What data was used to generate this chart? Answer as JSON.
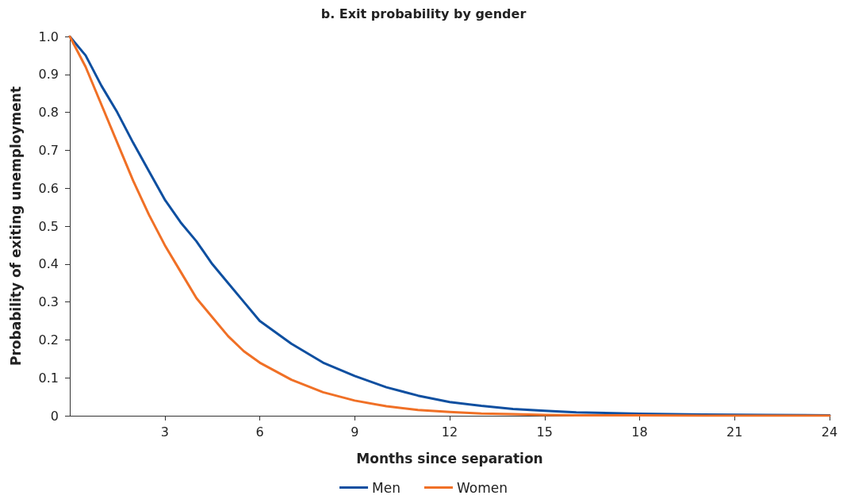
{
  "chart_data": {
    "type": "line",
    "title": "b. Exit probability by gender",
    "xlabel": "Months since separation",
    "ylabel": "Probability of exiting unemployment",
    "x": [
      0,
      0.5,
      1,
      1.5,
      2,
      2.5,
      3,
      3.5,
      4,
      4.5,
      5,
      5.5,
      6,
      7,
      8,
      9,
      10,
      11,
      12,
      13,
      14,
      15,
      16,
      18,
      20,
      22,
      24
    ],
    "series": [
      {
        "name": "Men",
        "color": "#0e4fa0",
        "values": [
          1.0,
          0.95,
          0.87,
          0.8,
          0.72,
          0.645,
          0.57,
          0.51,
          0.46,
          0.4,
          0.35,
          0.3,
          0.25,
          0.19,
          0.14,
          0.105,
          0.075,
          0.053,
          0.036,
          0.026,
          0.018,
          0.013,
          0.009,
          0.005,
          0.003,
          0.002,
          0.001
        ]
      },
      {
        "name": "Women",
        "color": "#f07026",
        "values": [
          1.0,
          0.92,
          0.82,
          0.72,
          0.62,
          0.53,
          0.45,
          0.38,
          0.31,
          0.26,
          0.21,
          0.17,
          0.14,
          0.095,
          0.062,
          0.04,
          0.025,
          0.015,
          0.01,
          0.006,
          0.004,
          0.002,
          0.001,
          0.001,
          0,
          0,
          0
        ]
      }
    ],
    "xlim": [
      0,
      24
    ],
    "xticks": [
      3,
      6,
      9,
      12,
      15,
      18,
      21,
      24
    ],
    "ylim": [
      0,
      1
    ],
    "yticks": [
      0,
      0.1,
      0.2,
      0.3,
      0.4,
      0.5,
      0.6,
      0.7,
      0.8,
      0.9,
      {
        "value": 1,
        "label": "1.0"
      }
    ],
    "grid": false,
    "legend": "bottom",
    "marker": "none",
    "line_style": "solid"
  }
}
